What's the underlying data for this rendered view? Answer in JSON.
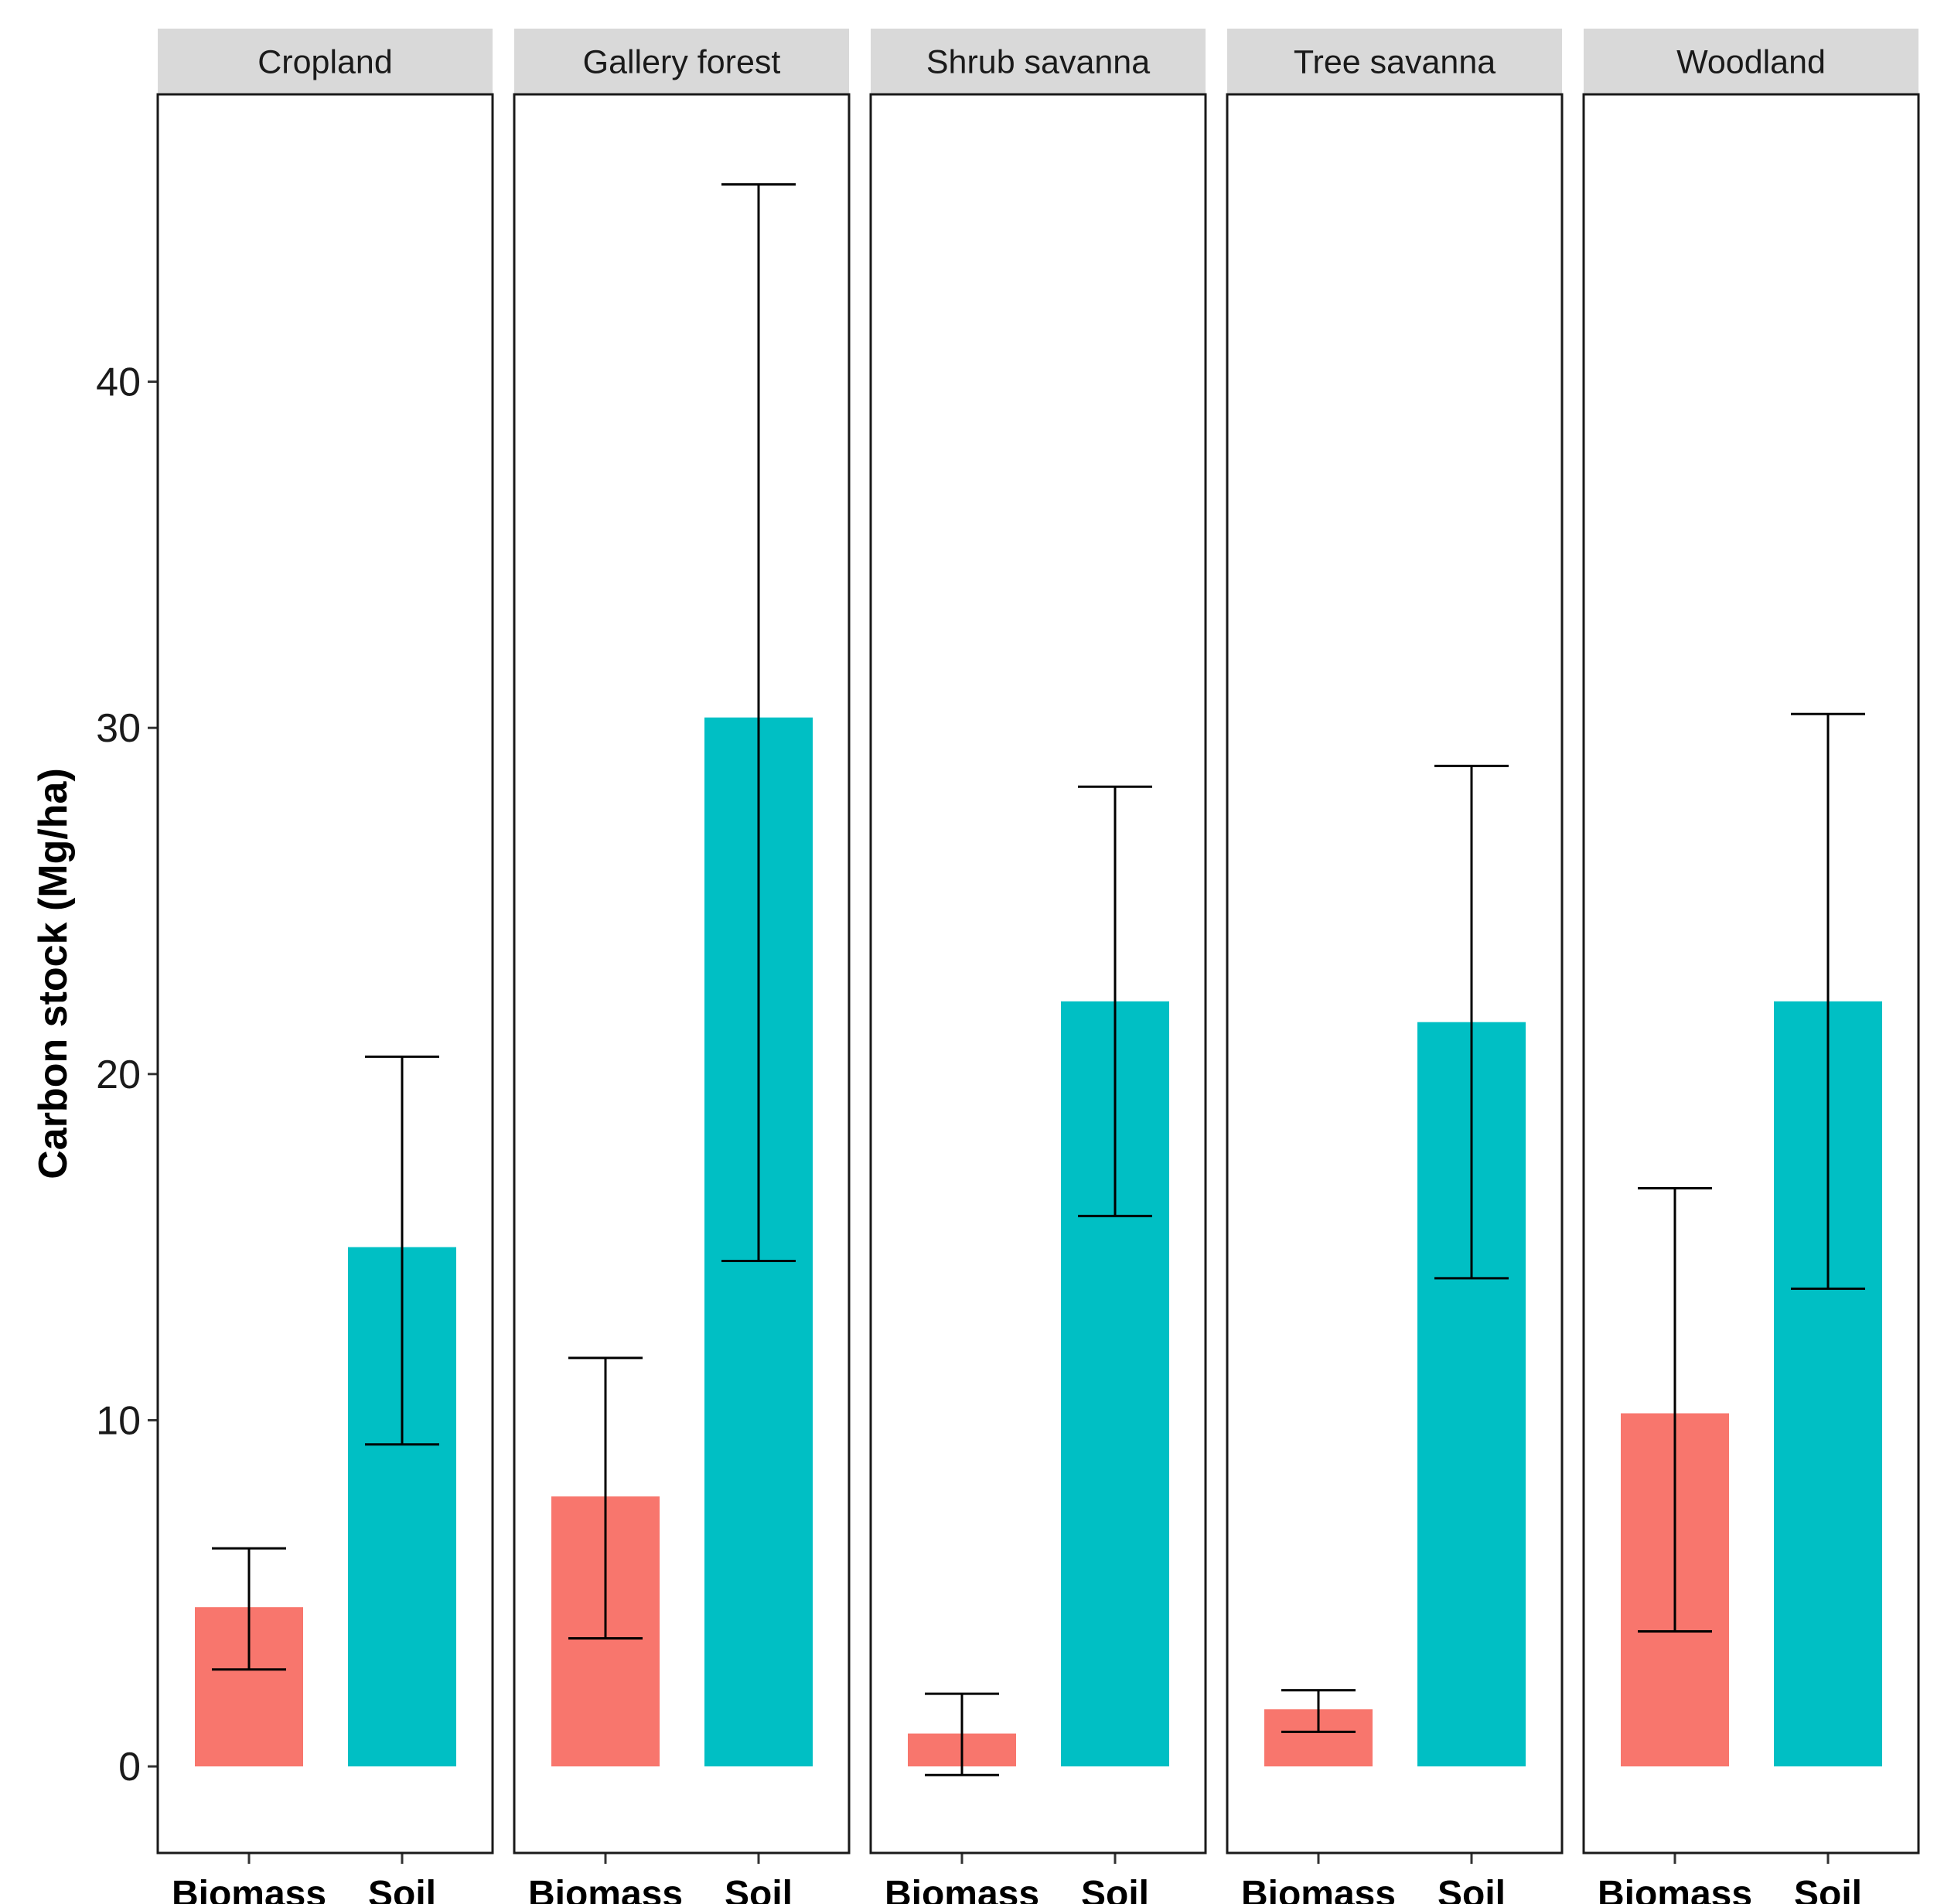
{
  "chart_data": {
    "type": "bar",
    "title": "",
    "xlabel": "",
    "ylabel": "Carbon stock (Mg/ha)",
    "ylim": [
      -2.5,
      48.3
    ],
    "yticks": [
      0,
      10,
      20,
      30,
      40
    ],
    "categories": [
      "Biomass",
      "Soil"
    ],
    "series_colors": {
      "Biomass": "#F8766D",
      "Soil": "#00BFC4"
    },
    "grid": false,
    "legend": "none",
    "facets": [
      {
        "name": "Cropland",
        "bars": [
          {
            "category": "Biomass",
            "value": 4.6,
            "err_low": 2.8,
            "err_high": 6.3
          },
          {
            "category": "Soil",
            "value": 15.0,
            "err_low": 9.3,
            "err_high": 20.5
          }
        ]
      },
      {
        "name": "Gallery forest",
        "bars": [
          {
            "category": "Biomass",
            "value": 7.8,
            "err_low": 3.7,
            "err_high": 11.8
          },
          {
            "category": "Soil",
            "value": 30.3,
            "err_low": 14.6,
            "err_high": 45.7
          }
        ]
      },
      {
        "name": "Shrub savanna",
        "bars": [
          {
            "category": "Biomass",
            "value": 0.95,
            "err_low": -0.25,
            "err_high": 2.1
          },
          {
            "category": "Soil",
            "value": 22.1,
            "err_low": 15.9,
            "err_high": 28.3
          }
        ]
      },
      {
        "name": "Tree savanna",
        "bars": [
          {
            "category": "Biomass",
            "value": 1.65,
            "err_low": 1.0,
            "err_high": 2.2
          },
          {
            "category": "Soil",
            "value": 21.5,
            "err_low": 14.1,
            "err_high": 28.9
          }
        ]
      },
      {
        "name": "Woodland",
        "bars": [
          {
            "category": "Biomass",
            "value": 10.2,
            "err_low": 3.9,
            "err_high": 16.7
          },
          {
            "category": "Soil",
            "value": 22.1,
            "err_low": 13.8,
            "err_high": 30.4
          }
        ]
      }
    ]
  }
}
